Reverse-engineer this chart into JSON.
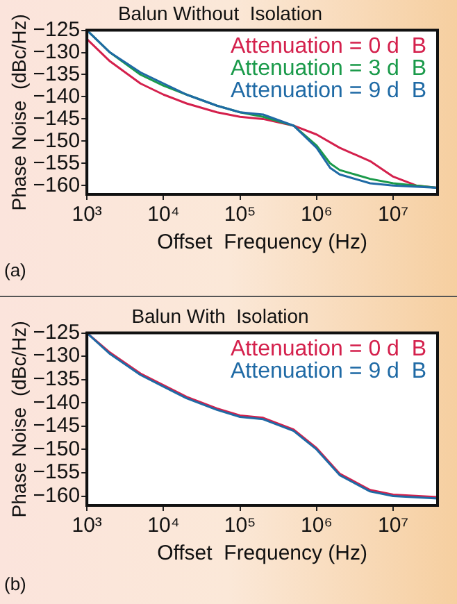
{
  "chart_data": [
    {
      "type": "line",
      "title": "Balun Without  Isolation",
      "xlabel": "Offset  Frequency (Hz)",
      "ylabel": "Phase Noise  (dBc/Hz)",
      "annotations": [
        "(a)"
      ],
      "log": "x",
      "grid": false,
      "legend": "top right",
      "marker": "none",
      "line_style": "solid",
      "xlim": [
        1000,
        38000000
      ],
      "ylim": [
        -162,
        -125
      ],
      "xticks": [
        {
          "value": 1000,
          "label": "10³"
        },
        {
          "value": 10000,
          "label": "10⁴"
        },
        {
          "value": 100000,
          "label": "10⁵"
        },
        {
          "value": 1000000,
          "label": "10⁶"
        },
        {
          "value": 10000000,
          "label": "10⁷"
        }
      ],
      "yticks": [
        -125,
        -130,
        -135,
        -140,
        -145,
        -150,
        -155,
        -160
      ],
      "series": [
        {
          "name": "Attenuation = 0 d  B",
          "color": "#d4204c",
          "x": [
            1000,
            2000,
            5000,
            10000,
            20000,
            50000,
            100000,
            200000,
            500000,
            1000000,
            2000000,
            5000000,
            10000000,
            20000000,
            38000000
          ],
          "values": [
            -127,
            -132,
            -137,
            -139.5,
            -141.5,
            -143.5,
            -144.5,
            -145,
            -146.5,
            -148.5,
            -151.5,
            -154.5,
            -158,
            -160,
            -160.5
          ]
        },
        {
          "name": "Attenuation = 3 d  B",
          "color": "#1a9a4a",
          "x": [
            1000,
            2000,
            5000,
            10000,
            20000,
            50000,
            100000,
            200000,
            500000,
            1000000,
            1500000,
            2000000,
            5000000,
            10000000,
            38000000
          ],
          "values": [
            -125,
            -130,
            -135,
            -137.5,
            -139.5,
            -142,
            -143.5,
            -144.5,
            -146.5,
            -151,
            -155,
            -156.5,
            -158.5,
            -159.5,
            -160.5
          ]
        },
        {
          "name": "Attenuation = 9 d  B",
          "color": "#1f6aa5",
          "x": [
            1000,
            2000,
            5000,
            10000,
            20000,
            50000,
            100000,
            200000,
            500000,
            1000000,
            1500000,
            2000000,
            5000000,
            10000000,
            38000000
          ],
          "values": [
            -125,
            -130,
            -134.5,
            -137,
            -139.5,
            -142,
            -143.5,
            -144,
            -146.5,
            -151.5,
            -156,
            -157.5,
            -159.5,
            -160,
            -160.5
          ]
        }
      ]
    },
    {
      "type": "line",
      "title": "Balun With  Isolation",
      "xlabel": "Offset  Frequency (Hz)",
      "ylabel": "Phase Noise  (dBc/Hz)",
      "annotations": [
        "(b)"
      ],
      "log": "x",
      "grid": false,
      "legend": "top right",
      "marker": "none",
      "line_style": "solid",
      "xlim": [
        1000,
        38000000
      ],
      "ylim": [
        -162,
        -125
      ],
      "xticks": [
        {
          "value": 1000,
          "label": "10³"
        },
        {
          "value": 10000,
          "label": "10⁴"
        },
        {
          "value": 100000,
          "label": "10⁵"
        },
        {
          "value": 1000000,
          "label": "10⁶"
        },
        {
          "value": 10000000,
          "label": "10⁷"
        }
      ],
      "yticks": [
        -125,
        -130,
        -135,
        -140,
        -145,
        -150,
        -155,
        -160
      ],
      "series": [
        {
          "name": "Attenuation = 0 d  B",
          "color": "#d4204c",
          "x": [
            1000,
            2000,
            5000,
            10000,
            20000,
            50000,
            100000,
            200000,
            500000,
            1000000,
            2000000,
            5000000,
            10000000,
            38000000
          ],
          "values": [
            -125,
            -129.2,
            -133.7,
            -136.2,
            -138.7,
            -141.2,
            -142.7,
            -143.2,
            -145.7,
            -149.7,
            -155.2,
            -158.7,
            -159.7,
            -160.2
          ]
        },
        {
          "name": "Attenuation = 9 d  B",
          "color": "#1f6aa5",
          "x": [
            1000,
            2000,
            5000,
            10000,
            20000,
            50000,
            100000,
            200000,
            500000,
            1000000,
            2000000,
            5000000,
            10000000,
            38000000
          ],
          "values": [
            -125,
            -129.5,
            -134,
            -136.5,
            -139,
            -141.5,
            -143,
            -143.5,
            -146,
            -150,
            -155.5,
            -159,
            -160,
            -160.5
          ]
        }
      ]
    }
  ]
}
